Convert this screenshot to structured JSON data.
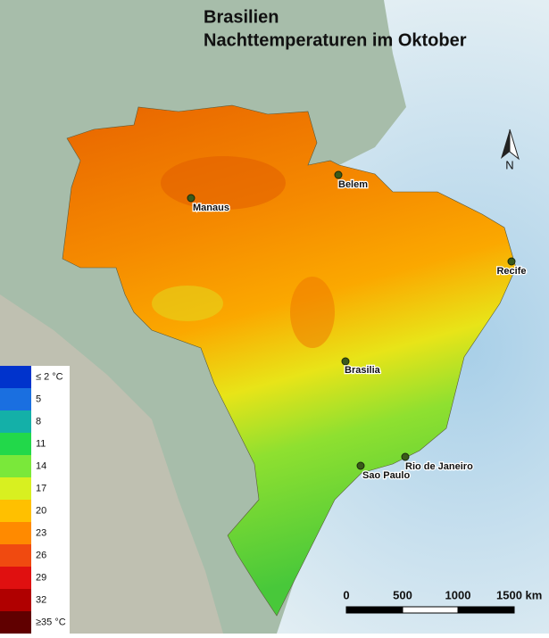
{
  "title": [
    "Brasilien",
    "Nachttemperaturen im Oktober"
  ],
  "north": "N",
  "cities": [
    {
      "label": "Manaus"
    },
    {
      "label": "Belem"
    },
    {
      "label": "Recife"
    },
    {
      "label": "Brasilia"
    },
    {
      "label": "Sao Paulo"
    },
    {
      "label": "Rio de Janeiro"
    }
  ],
  "legend": [
    {
      "label": "≤ 2 °C",
      "color": "#0033cc"
    },
    {
      "label": "5",
      "color": "#1a6fe0"
    },
    {
      "label": "8",
      "color": "#14b0a8"
    },
    {
      "label": "11",
      "color": "#22d84a"
    },
    {
      "label": "14",
      "color": "#7ae83a"
    },
    {
      "label": "17",
      "color": "#d8f020"
    },
    {
      "label": "20",
      "color": "#ffc000"
    },
    {
      "label": "23",
      "color": "#ff8a00"
    },
    {
      "label": "26",
      "color": "#f04a10"
    },
    {
      "label": "29",
      "color": "#e01010"
    },
    {
      "label": "32",
      "color": "#b00000"
    },
    {
      "label": "≥35 °C",
      "color": "#600000"
    }
  ],
  "scale": [
    "0",
    "500",
    "1000",
    "1500 km"
  ]
}
